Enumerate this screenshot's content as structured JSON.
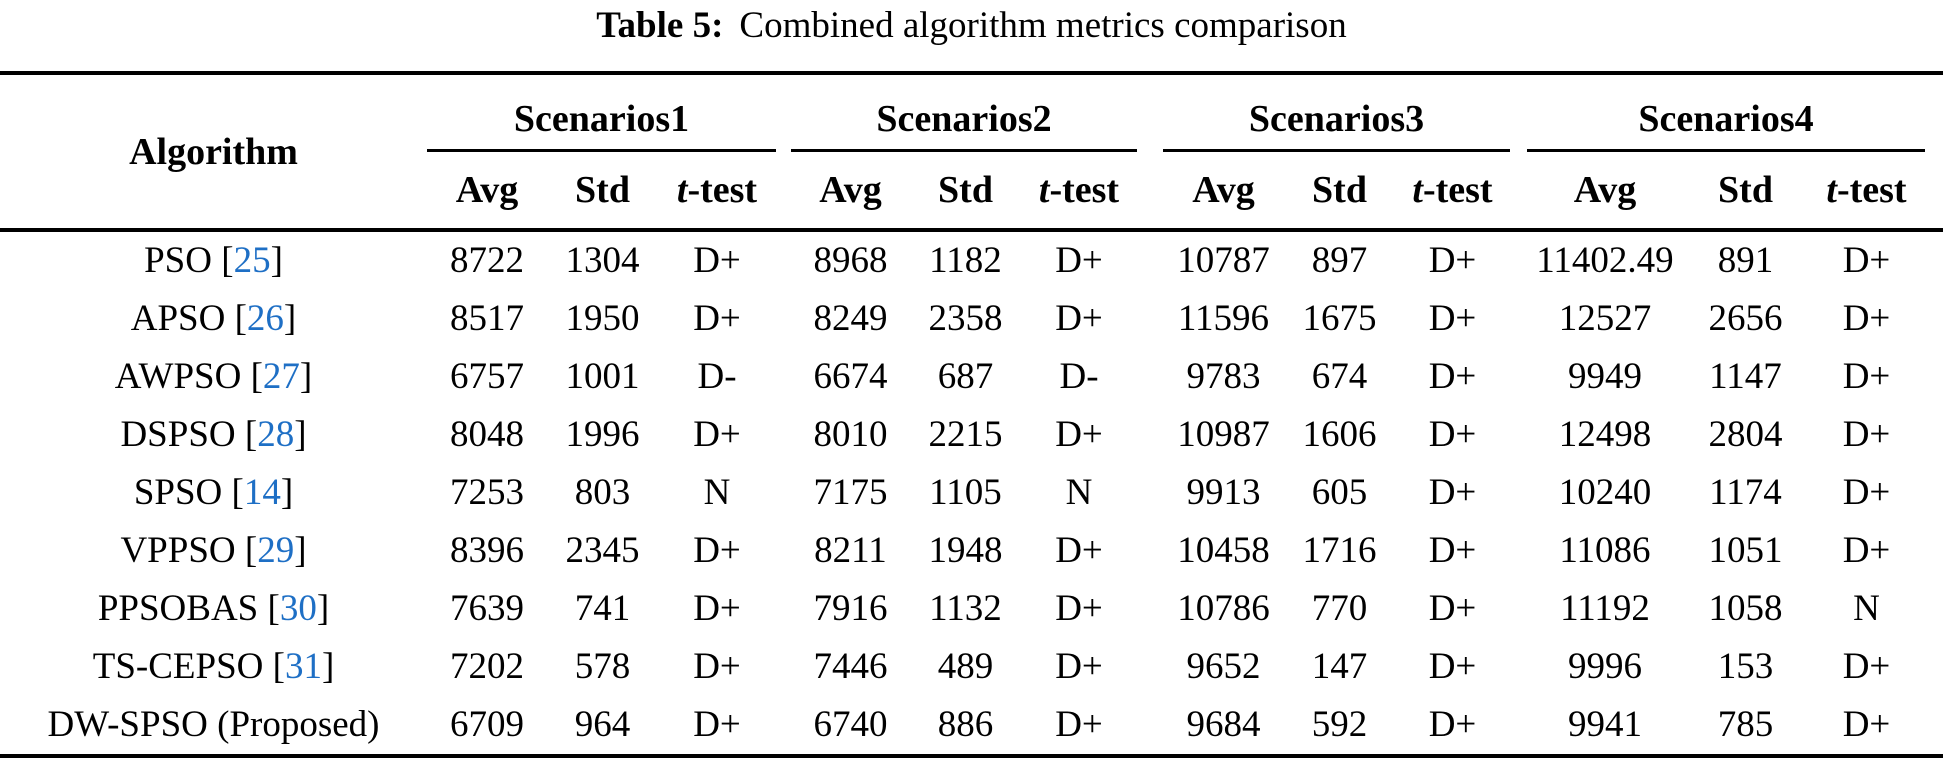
{
  "title": {
    "prefix": "Table 5:",
    "text": "Combined algorithm metrics comparison"
  },
  "table": {
    "algorithm_header": "Algorithm",
    "scenario_groups": [
      "Scenarios1",
      "Scenarios2",
      "Scenarios3",
      "Scenarios4"
    ],
    "metric_headers": {
      "avg": "Avg",
      "std": "Std",
      "ttest_prefix": "t",
      "ttest_suffix": "-test"
    },
    "bracket_open": "[",
    "bracket_close": "]",
    "rows": [
      {
        "algorithm": "PSO",
        "ref": "25",
        "values": [
          "8722",
          "1304",
          "D+",
          "8968",
          "1182",
          "D+",
          "10787",
          "897",
          "D+",
          "11402.49",
          "891",
          "D+"
        ]
      },
      {
        "algorithm": "APSO",
        "ref": "26",
        "values": [
          "8517",
          "1950",
          "D+",
          "8249",
          "2358",
          "D+",
          "11596",
          "1675",
          "D+",
          "12527",
          "2656",
          "D+"
        ]
      },
      {
        "algorithm": "AWPSO",
        "ref": "27",
        "values": [
          "6757",
          "1001",
          "D-",
          "6674",
          "687",
          "D-",
          "9783",
          "674",
          "D+",
          "9949",
          "1147",
          "D+"
        ]
      },
      {
        "algorithm": "DSPSO",
        "ref": "28",
        "values": [
          "8048",
          "1996",
          "D+",
          "8010",
          "2215",
          "D+",
          "10987",
          "1606",
          "D+",
          "12498",
          "2804",
          "D+"
        ]
      },
      {
        "algorithm": "SPSO",
        "ref": "14",
        "values": [
          "7253",
          "803",
          "N",
          "7175",
          "1105",
          "N",
          "9913",
          "605",
          "D+",
          "10240",
          "1174",
          "D+"
        ]
      },
      {
        "algorithm": "VPPSO",
        "ref": "29",
        "values": [
          "8396",
          "2345",
          "D+",
          "8211",
          "1948",
          "D+",
          "10458",
          "1716",
          "D+",
          "11086",
          "1051",
          "D+"
        ]
      },
      {
        "algorithm": "PPSOBAS",
        "ref": "30",
        "values": [
          "7639",
          "741",
          "D+",
          "7916",
          "1132",
          "D+",
          "10786",
          "770",
          "D+",
          "11192",
          "1058",
          "N"
        ]
      },
      {
        "algorithm": "TS-CEPSO",
        "ref": "31",
        "values": [
          "7202",
          "578",
          "D+",
          "7446",
          "489",
          "D+",
          "9652",
          "147",
          "D+",
          "9996",
          "153",
          "D+"
        ]
      },
      {
        "algorithm": "DW-SPSO (Proposed)",
        "ref": null,
        "values": [
          "6709",
          "964",
          "D+",
          "6740",
          "886",
          "D+",
          "9684",
          "592",
          "D+",
          "9941",
          "785",
          "D+"
        ]
      }
    ]
  },
  "colors": {
    "citation": "#1e6fc5",
    "text": "#000000",
    "background": "#ffffff"
  }
}
